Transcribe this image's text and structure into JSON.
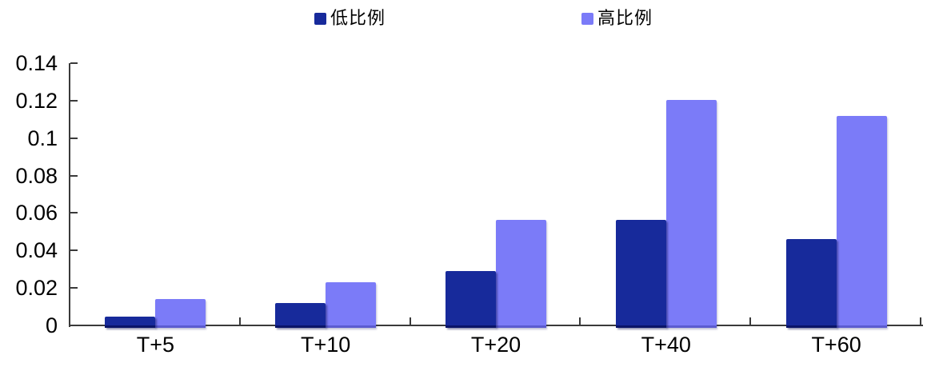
{
  "chart_data": {
    "type": "bar",
    "title": "",
    "xlabel": "",
    "ylabel": "",
    "categories": [
      "T+5",
      "T+10",
      "T+20",
      "T+40",
      "T+60"
    ],
    "series": [
      {
        "name": "低比例",
        "color": "#172A9B",
        "edge_color": "#0A1468",
        "values": [
          0.0045,
          0.012,
          0.029,
          0.0565,
          0.046
        ]
      },
      {
        "name": "高比例",
        "color": "#7B7BF8",
        "edge_color": "#5B5BD0",
        "values": [
          0.014,
          0.023,
          0.0565,
          0.1205,
          0.112
        ]
      }
    ],
    "ylim": [
      0,
      0.14
    ],
    "yticks": [
      {
        "value": 0,
        "label": "0"
      },
      {
        "value": 0.02,
        "label": "0.02"
      },
      {
        "value": 0.04,
        "label": "0.04"
      },
      {
        "value": 0.06,
        "label": "0.06"
      },
      {
        "value": 0.08,
        "label": "0.08"
      },
      {
        "value": 0.1,
        "label": "0.1"
      },
      {
        "value": 0.12,
        "label": "0.12"
      },
      {
        "value": 0.14,
        "label": "0.14"
      }
    ],
    "grid": false,
    "legend_position": "top",
    "axis_color": "#3a3a3a",
    "background_color": "#ffffff"
  }
}
